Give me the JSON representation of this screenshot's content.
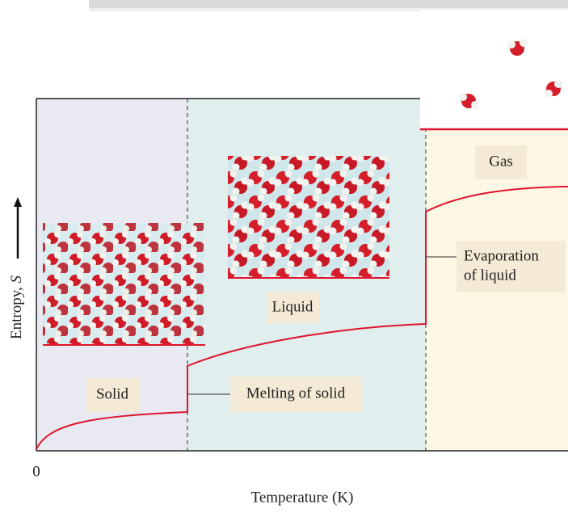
{
  "axes": {
    "x_label": "Temperature (K)",
    "x_tick": "0",
    "y_label": "Entropy, ",
    "y_symbol": "S"
  },
  "regions": {
    "solid": "Solid",
    "liquid": "Liquid",
    "gas": "Gas"
  },
  "annotations": {
    "melting": "Melting of solid",
    "evaporation_line1": "Evaporation",
    "evaporation_line2": "of liquid"
  }
}
